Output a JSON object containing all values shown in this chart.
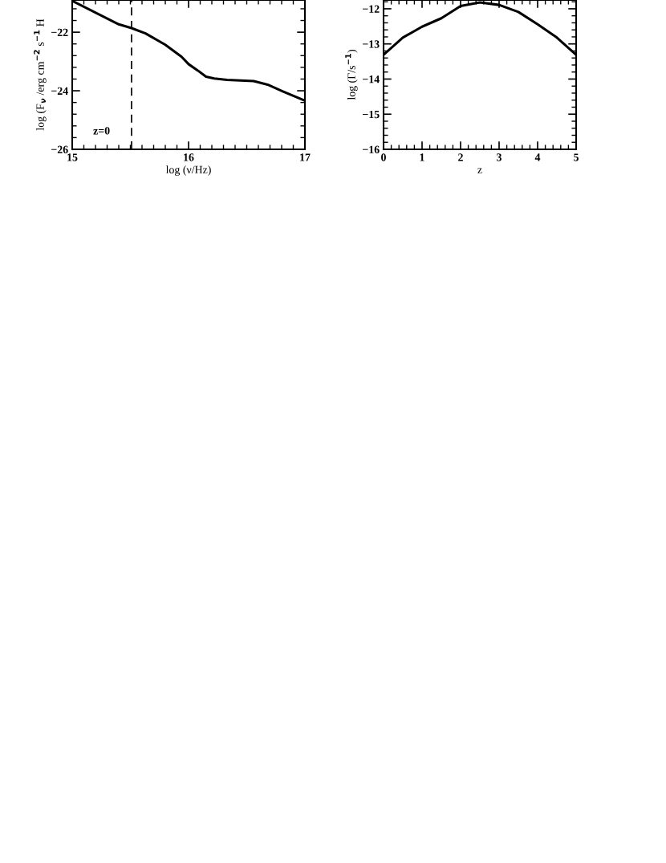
{
  "chart_data": [
    {
      "type": "line",
      "xlabel": "log (ν/Hz)",
      "ylabel": "log (F$_{ν}$ /erg cm$^{−2}$ s$^{−1}$ H",
      "xlim": [
        15,
        17
      ],
      "ylim": [
        -26,
        -20.9
      ],
      "xticks": [
        15,
        16,
        17
      ],
      "yticks": [
        -26,
        -24,
        -22
      ],
      "grid": false,
      "annotations": [
        "z=0"
      ],
      "ref_lines": [
        {
          "axis": "x",
          "value": 15.51,
          "line_style": "dashed",
          "color": "#000000"
        }
      ],
      "series": [
        {
          "color": "#000000",
          "x": [
            15.0,
            15.4,
            15.51,
            15.63,
            15.8,
            15.94,
            16.0,
            16.08,
            16.15,
            16.22,
            16.33,
            16.56,
            16.68,
            16.81,
            17.0
          ],
          "values": [
            -20.93,
            -21.73,
            -21.86,
            -22.04,
            -22.43,
            -22.84,
            -23.09,
            -23.31,
            -23.52,
            -23.58,
            -23.63,
            -23.67,
            -23.79,
            -24.02,
            -24.34
          ]
        }
      ]
    },
    {
      "type": "line",
      "xlabel": "z",
      "ylabel": "log (Γ/s$^{−1}$)",
      "xlim": [
        0,
        5
      ],
      "ylim": [
        -16,
        -11.75
      ],
      "xticks": [
        0,
        1,
        2,
        3,
        4,
        5
      ],
      "yticks": [
        -16,
        -15,
        -14,
        -13,
        -12
      ],
      "grid": false,
      "series": [
        {
          "color": "#000000",
          "x": [
            0,
            0.5,
            1,
            1.5,
            2,
            2.5,
            3,
            3.5,
            4,
            4.5,
            5
          ],
          "values": [
            -13.31,
            -12.82,
            -12.51,
            -12.27,
            -11.92,
            -11.82,
            -11.89,
            -12.09,
            -12.44,
            -12.82,
            -13.31
          ]
        }
      ]
    }
  ]
}
